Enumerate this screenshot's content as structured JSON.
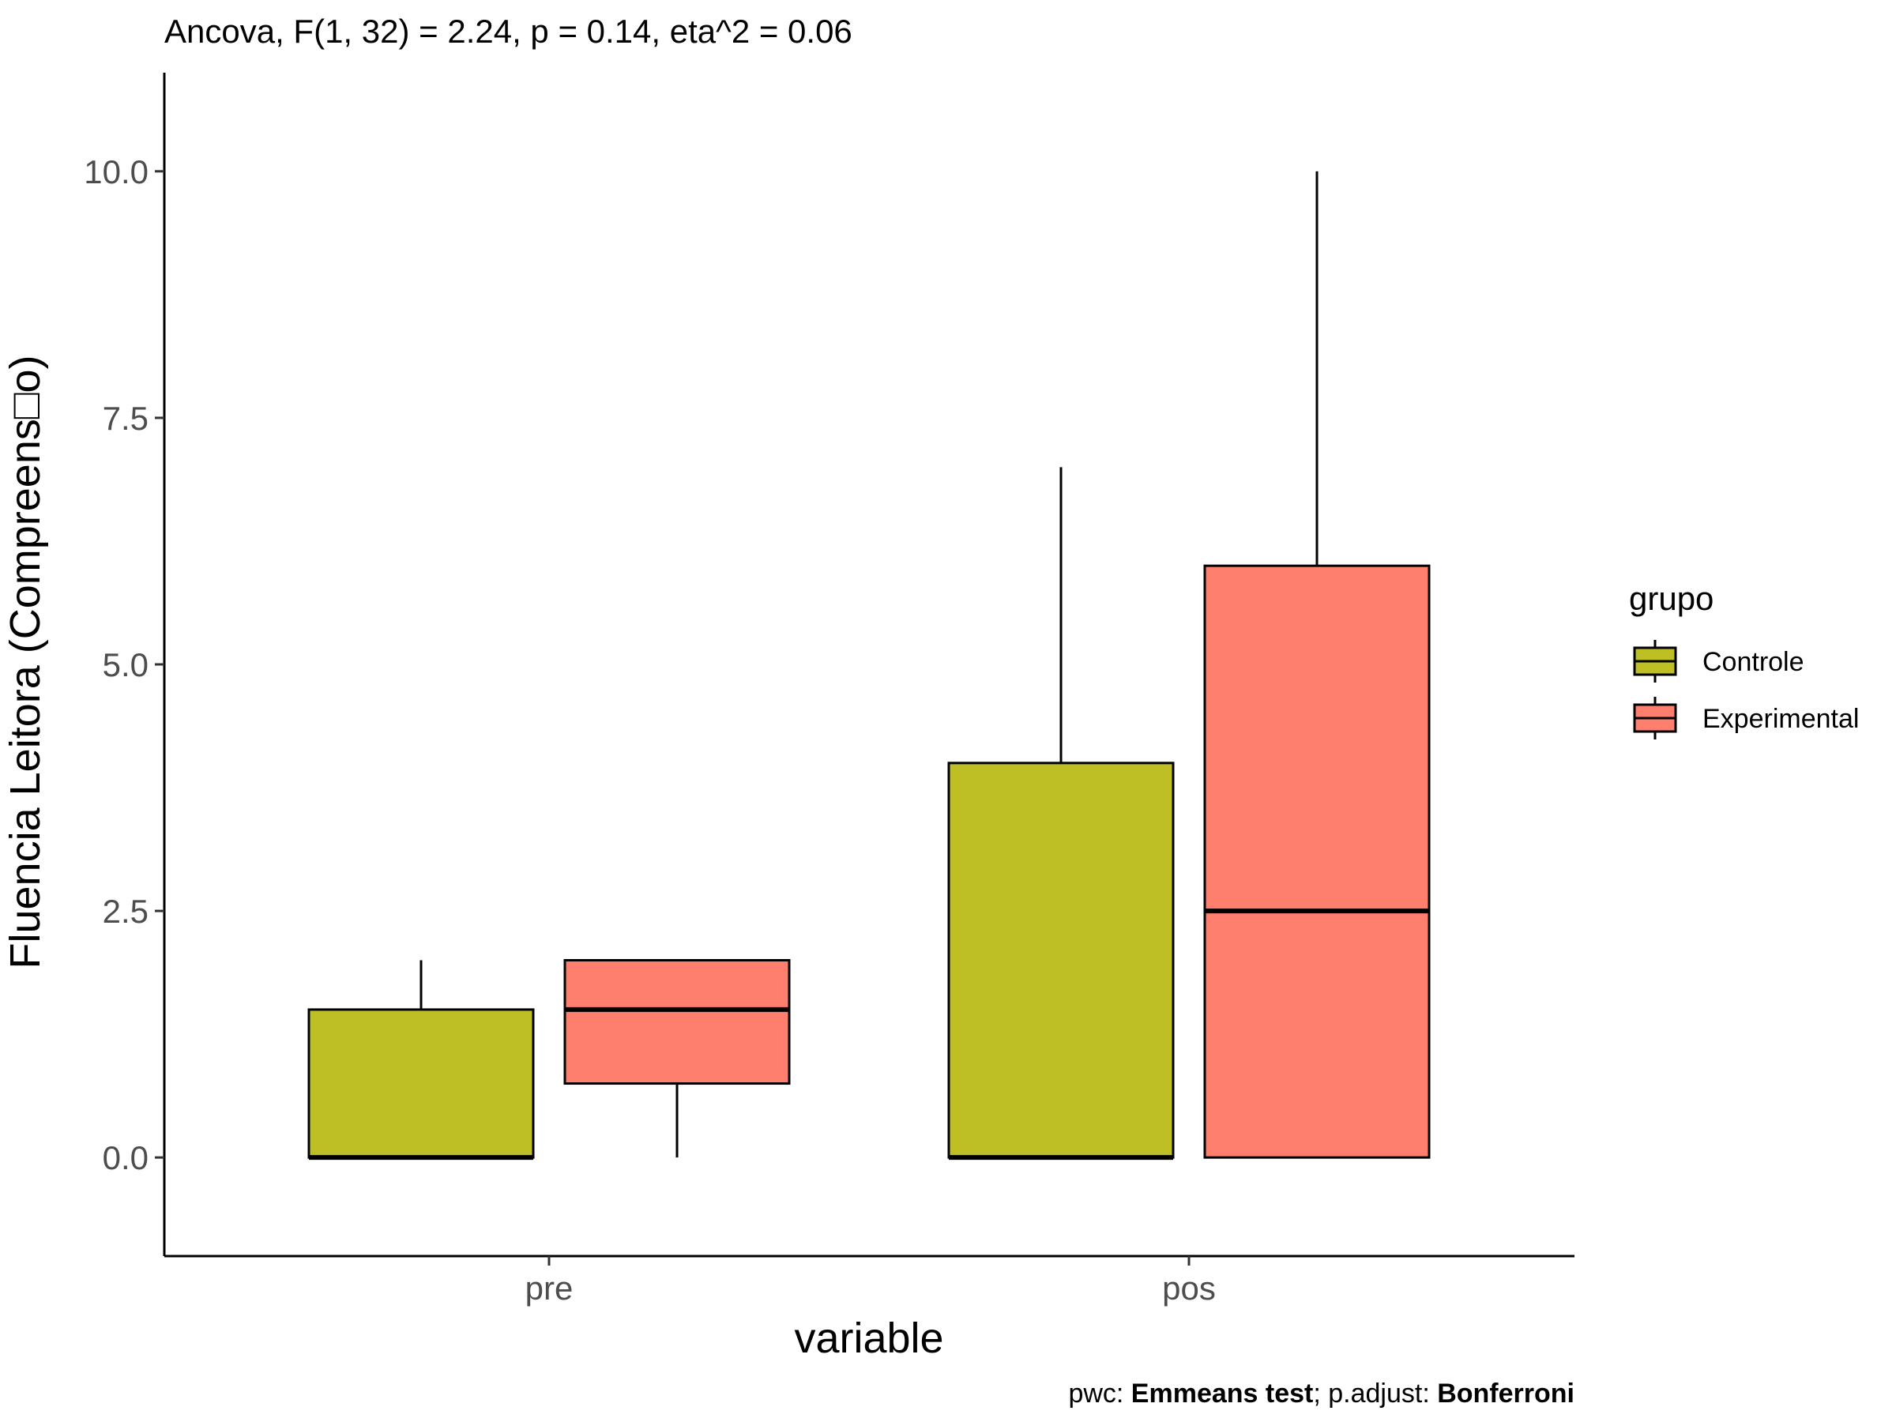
{
  "chart_data": {
    "type": "boxplot",
    "title": "Ancova, F(1, 32) = 2.24, p = 0.14, eta^2 = 0.06",
    "xlabel": "variable",
    "ylabel": "Fluencia Leitora (Compreens□o)",
    "categories": [
      "pre",
      "pos"
    ],
    "ylim": [
      -1.0,
      11.0
    ],
    "yticks": [
      "0.0",
      "2.5",
      "5.0",
      "7.5",
      "10.0"
    ],
    "ytick_values": [
      0,
      2.5,
      5,
      7.5,
      10
    ],
    "grid": false,
    "legend": {
      "title": "grupo",
      "position": "right"
    },
    "series": [
      {
        "name": "Controle",
        "color": "#BDBF24",
        "boxes": [
          {
            "category": "pre",
            "lower_whisker": 0,
            "q1": 0,
            "median": 0,
            "q3": 1.5,
            "upper_whisker": 2
          },
          {
            "category": "pos",
            "lower_whisker": 0,
            "q1": 0,
            "median": 0,
            "q3": 4,
            "upper_whisker": 7
          }
        ]
      },
      {
        "name": "Experimental",
        "color": "#FF7F6E",
        "boxes": [
          {
            "category": "pre",
            "lower_whisker": 0,
            "q1": 0.75,
            "median": 1.5,
            "q3": 2,
            "upper_whisker": 2
          },
          {
            "category": "pos",
            "lower_whisker": 0,
            "q1": 0,
            "median": 2.5,
            "q3": 6,
            "upper_whisker": 10
          }
        ]
      }
    ],
    "caption": {
      "prefix": "pwc: ",
      "test": "Emmeans test",
      "middle": "; p.adjust: ",
      "adjust": "Bonferroni"
    }
  }
}
